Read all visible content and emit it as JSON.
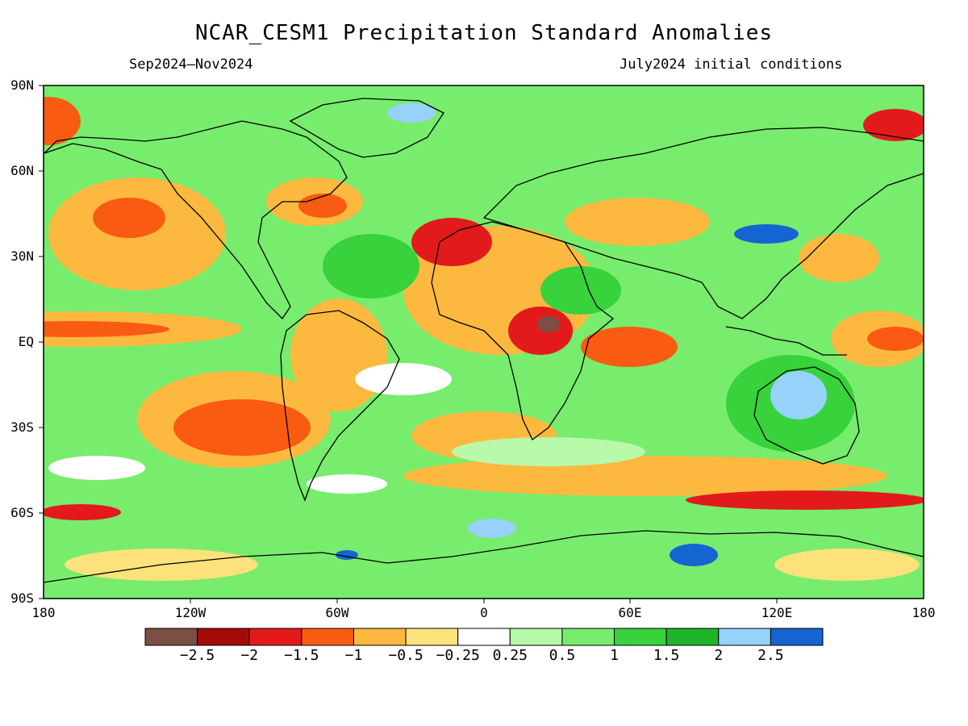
{
  "title": "NCAR_CESM1 Precipitation Standard Anomalies",
  "subtitle_left": "Sep2024–Nov2024",
  "subtitle_right": "July2024 initial conditions",
  "lat_labels": [
    "90N",
    "60N",
    "30N",
    "EQ",
    "30S",
    "60S",
    "90S"
  ],
  "lon_labels": [
    "180",
    "120W",
    "60W",
    "0",
    "60E",
    "120E",
    "180"
  ],
  "colorbar": {
    "labels": [
      "−2.5",
      "−2",
      "−1.5",
      "−1",
      "−0.5",
      "−0.25",
      "0.25",
      "0.5",
      "1",
      "1.5",
      "2",
      "2.5"
    ],
    "colors": [
      "#7b4f45",
      "#a50a0a",
      "#e31a1c",
      "#f95b12",
      "#fdb93f",
      "#fde27c",
      "#ffffff",
      "#b9f9aa",
      "#78ec6c",
      "#37d23c",
      "#1fb42a",
      "#96d2fa",
      "#1464d2"
    ]
  }
}
